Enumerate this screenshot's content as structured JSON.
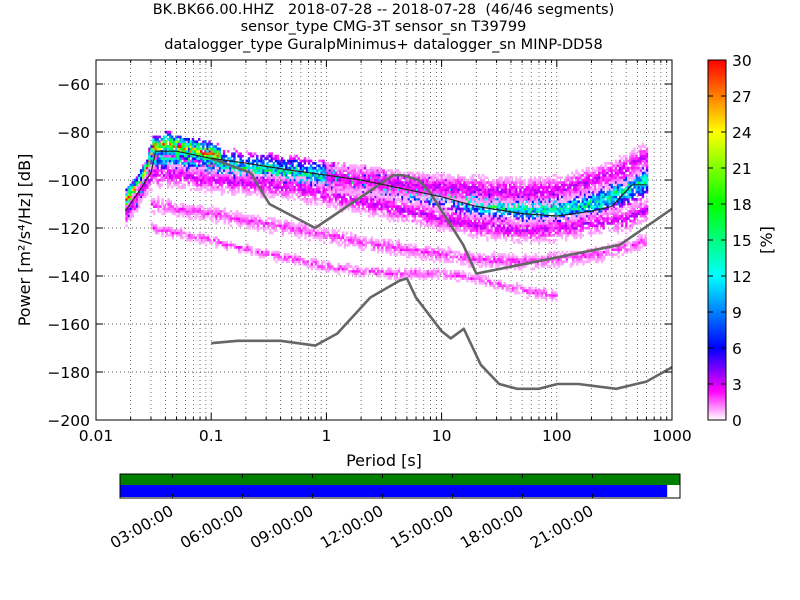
{
  "title": {
    "line1": "BK.BK66.00.HHZ   2018-07-28 -- 2018-07-28  (46/46 segments)",
    "line2": "sensor_type CMG-3T sensor_sn T39799",
    "line3": "datalogger_type GuralpMinimus+ datalogger_sn MINP-DD58"
  },
  "chart_data": {
    "type": "heatmap",
    "xlabel": "Period [s]",
    "ylabel": "Power [m²/s⁴/Hz] [dB]",
    "xscale": "log",
    "xlim": [
      0.01,
      1000
    ],
    "ylim": [
      -200,
      -50
    ],
    "x_ticks": [
      0.01,
      0.1,
      1,
      10,
      100,
      1000
    ],
    "x_tick_labels": [
      "0.01",
      "0.1",
      "1",
      "10",
      "100",
      "1000"
    ],
    "y_ticks": [
      -200,
      -180,
      -160,
      -140,
      -120,
      -100,
      -80,
      -60
    ],
    "y_tick_labels": [
      "−200",
      "−180",
      "−160",
      "−140",
      "−120",
      "−100",
      "−80",
      "−60"
    ],
    "colorbar": {
      "label": "[%]",
      "range": [
        0,
        30
      ],
      "ticks": [
        0,
        3,
        6,
        9,
        12,
        15,
        18,
        21,
        24,
        27,
        30
      ],
      "colormap": [
        "#ffffff",
        "#ff00ff",
        "#0000ff",
        "#00ffff",
        "#00ff00",
        "#ffff00",
        "#ff0000"
      ]
    },
    "series": [
      {
        "role": "noise-model-low",
        "x": [
          0.1,
          0.17,
          0.4,
          0.8,
          1.24,
          2.4,
          4.3,
          5.0,
          6.0,
          10.0,
          12.0,
          15.6,
          21.9,
          31.6,
          45.0,
          70.0,
          101.0,
          154.0,
          328.0,
          600.0,
          1000.0
        ],
        "y": [
          -168,
          -167,
          -167,
          -169,
          -164,
          -149,
          -142,
          -141,
          -149,
          -163,
          -166,
          -162,
          -177,
          -185,
          -187,
          -187,
          -185,
          -185,
          -187,
          -184,
          -178
        ]
      },
      {
        "role": "noise-model-high",
        "x": [
          0.1,
          0.22,
          0.32,
          0.8,
          3.8,
          4.6,
          6.3,
          7.9,
          15.4,
          20.0,
          354.0,
          1000.0
        ],
        "y": [
          -91,
          -97,
          -110,
          -120,
          -98,
          -98,
          -100,
          -105,
          -127,
          -139,
          -127,
          -112
        ]
      },
      {
        "role": "mode",
        "x": [
          0.018,
          0.025,
          0.03,
          0.033,
          0.05,
          0.1,
          0.2,
          0.5,
          1,
          2,
          5,
          10,
          20,
          50,
          100,
          200,
          300,
          450,
          600
        ],
        "y": [
          -113,
          -103,
          -97,
          -88,
          -88,
          -91,
          -93,
          -96,
          -98,
          -100,
          -104,
          -107,
          -111,
          -114,
          -115,
          -113,
          -111,
          -102,
          -102
        ]
      }
    ],
    "density_bands": [
      {
        "x": [
          0.018,
          0.022,
          0.026,
          0.031,
          0.05,
          0.1,
          0.2,
          0.5,
          1,
          2,
          5,
          10,
          20,
          50,
          100,
          200,
          400,
          600
        ],
        "y": [
          -111,
          -106,
          -100,
          -90,
          -90,
          -93,
          -95,
          -97,
          -99,
          -101,
          -104,
          -106,
          -110,
          -112,
          -112,
          -110,
          -104,
          -100
        ],
        "level": 14,
        "spread": 6
      },
      {
        "x": [
          0.018,
          0.023,
          0.027,
          0.031,
          0.04,
          0.05,
          0.08,
          0.12
        ],
        "y": [
          -108,
          -102,
          -96,
          -86,
          -85,
          -86,
          -88,
          -90
        ],
        "level": 24,
        "spread": 4
      },
      {
        "x": [
          0.018,
          0.03,
          0.05,
          0.1,
          0.2,
          0.5,
          1,
          2,
          5,
          10,
          20,
          50,
          100,
          200,
          400,
          600
        ],
        "y": [
          -114,
          -98,
          -98,
          -100,
          -101,
          -103,
          -106,
          -109,
          -113,
          -116,
          -119,
          -121,
          -120,
          -118,
          -116,
          -112
        ],
        "level": 3,
        "spread": 4
      },
      {
        "x": [
          0.03,
          0.05,
          0.1,
          0.2,
          0.5,
          1,
          2,
          5,
          10,
          20,
          50,
          100,
          200,
          400,
          600
        ],
        "y": [
          -110,
          -112,
          -114,
          -117,
          -120,
          -123,
          -126,
          -129,
          -131,
          -133,
          -134,
          -133,
          -131,
          -128,
          -125
        ],
        "level": 2,
        "spread": 2
      },
      {
        "x": [
          0.03,
          0.05,
          0.1,
          0.2,
          0.5,
          1,
          2,
          5,
          10,
          20,
          50,
          100
        ],
        "y": [
          -120,
          -122,
          -125,
          -129,
          -133,
          -136,
          -138,
          -139,
          -139,
          -141,
          -146,
          -148
        ],
        "level": 2,
        "spread": 1
      },
      {
        "x": [
          1,
          2,
          5,
          10,
          20,
          50,
          100,
          200,
          400,
          600
        ],
        "y": [
          -99,
          -100,
          -102,
          -103,
          -104,
          -105,
          -104,
          -100,
          -95,
          -90
        ],
        "level": 3,
        "spread": 5
      }
    ]
  },
  "timeline": {
    "tick_labels": [
      "03:00:00",
      "06:00:00",
      "09:00:00",
      "12:00:00",
      "15:00:00",
      "18:00:00",
      "21:00:00"
    ],
    "tick_hours": [
      3,
      6,
      9,
      12,
      15,
      18,
      21
    ],
    "range_hours": [
      0.75,
      24.75
    ],
    "green_coverage_hours": [
      0.75,
      24.75
    ],
    "blue_coverage_hours": [
      0.75,
      24.2
    ],
    "colors": {
      "green": "#008000",
      "blue": "#0000ff"
    }
  }
}
